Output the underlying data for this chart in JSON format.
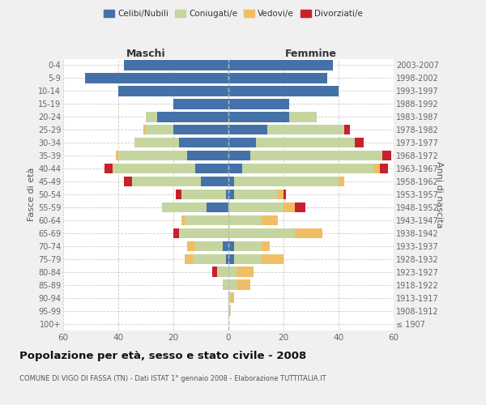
{
  "age_groups": [
    "100+",
    "95-99",
    "90-94",
    "85-89",
    "80-84",
    "75-79",
    "70-74",
    "65-69",
    "60-64",
    "55-59",
    "50-54",
    "45-49",
    "40-44",
    "35-39",
    "30-34",
    "25-29",
    "20-24",
    "15-19",
    "10-14",
    "5-9",
    "0-4"
  ],
  "birth_years": [
    "≤ 1907",
    "1908-1912",
    "1913-1917",
    "1918-1922",
    "1923-1927",
    "1928-1932",
    "1933-1937",
    "1938-1942",
    "1943-1947",
    "1948-1952",
    "1953-1957",
    "1958-1962",
    "1963-1967",
    "1968-1972",
    "1973-1977",
    "1978-1982",
    "1983-1987",
    "1988-1992",
    "1993-1997",
    "1998-2002",
    "2003-2007"
  ],
  "colors": {
    "celibi": "#4472a8",
    "coniugati": "#c5d5a0",
    "vedovi": "#f0be64",
    "divorziati": "#c8212d"
  },
  "maschi": {
    "celibi": [
      0,
      0,
      0,
      0,
      0,
      1,
      2,
      0,
      0,
      8,
      1,
      10,
      12,
      15,
      18,
      20,
      26,
      20,
      40,
      52,
      38
    ],
    "coniugati": [
      0,
      0,
      0,
      2,
      4,
      12,
      10,
      18,
      16,
      16,
      16,
      25,
      30,
      25,
      16,
      10,
      4,
      0,
      0,
      0,
      0
    ],
    "vedovi": [
      0,
      0,
      0,
      0,
      0,
      3,
      3,
      0,
      1,
      0,
      0,
      0,
      0,
      1,
      0,
      1,
      0,
      0,
      0,
      0,
      0
    ],
    "divorziati": [
      0,
      0,
      0,
      0,
      2,
      0,
      0,
      2,
      0,
      0,
      2,
      3,
      3,
      0,
      0,
      0,
      0,
      0,
      0,
      0,
      0
    ]
  },
  "femmine": {
    "celibi": [
      0,
      0,
      0,
      0,
      0,
      2,
      2,
      0,
      0,
      0,
      2,
      2,
      5,
      8,
      10,
      14,
      22,
      22,
      40,
      36,
      38
    ],
    "coniugati": [
      0,
      1,
      1,
      3,
      3,
      10,
      10,
      24,
      12,
      20,
      16,
      38,
      48,
      48,
      36,
      28,
      10,
      0,
      0,
      0,
      0
    ],
    "vedovi": [
      0,
      0,
      1,
      5,
      6,
      8,
      3,
      10,
      6,
      4,
      2,
      2,
      2,
      0,
      0,
      0,
      0,
      0,
      0,
      0,
      0
    ],
    "divorziati": [
      0,
      0,
      0,
      0,
      0,
      0,
      0,
      0,
      0,
      4,
      1,
      0,
      3,
      3,
      3,
      2,
      0,
      0,
      0,
      0,
      0
    ]
  },
  "title": "Popolazione per età, sesso e stato civile - 2008",
  "subtitle": "COMUNE DI VIGO DI FASSA (TN) - Dati ISTAT 1° gennaio 2008 - Elaborazione TUTTITALIA.IT",
  "xlabel_left": "Maschi",
  "xlabel_right": "Femmine",
  "ylabel_left": "Fasce di età",
  "ylabel_right": "Anni di nascita",
  "xlim": 60,
  "bg_color": "#f0f0f0",
  "plot_bg": "#ffffff",
  "grid_color": "#cccccc"
}
